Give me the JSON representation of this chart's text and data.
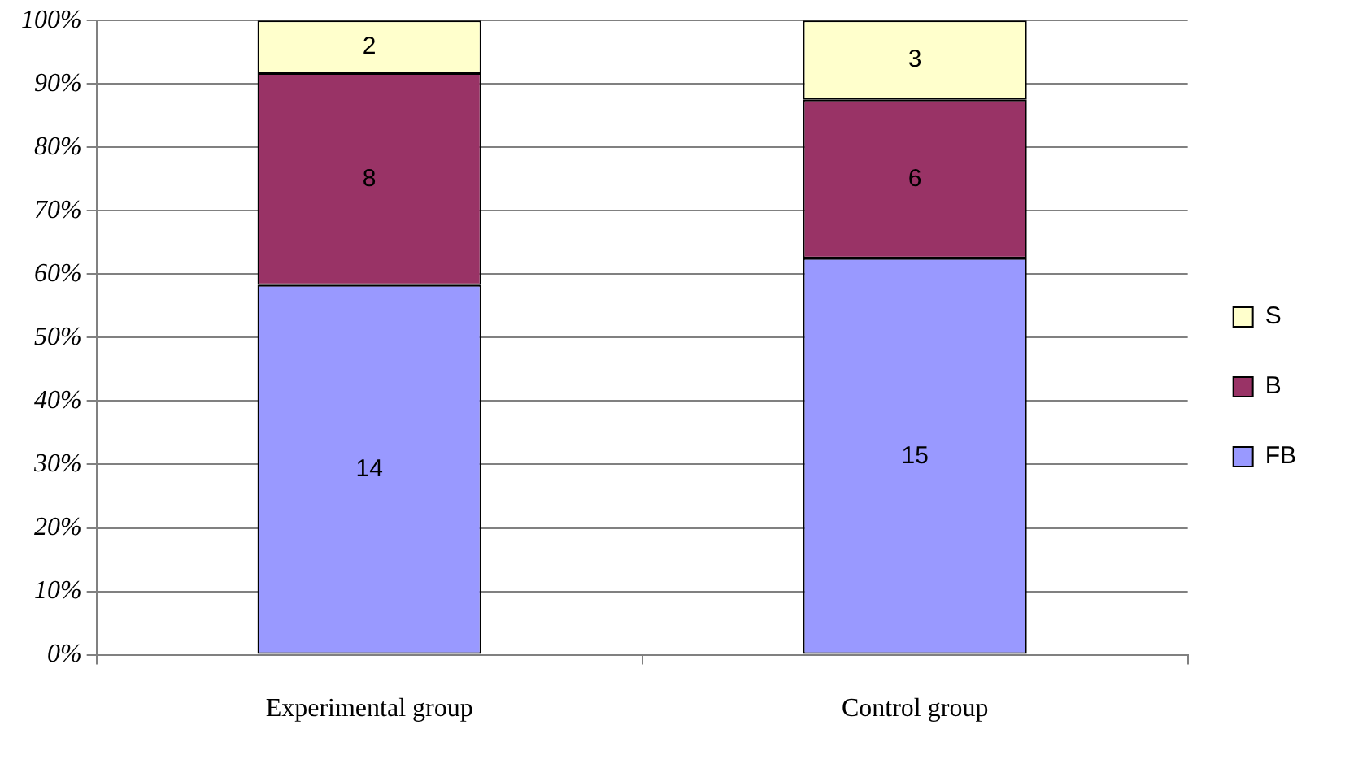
{
  "chart_data": {
    "type": "bar",
    "stacked": true,
    "categories": [
      "Experimental group",
      "Control group"
    ],
    "series": [
      {
        "name": "FB",
        "color": "#9999ff",
        "values": [
          58.3,
          62.5
        ]
      },
      {
        "name": "B",
        "color": "#993366",
        "values": [
          33.4,
          25
        ]
      },
      {
        "name": "S",
        "color": "#ffffcc",
        "values": [
          8.3,
          12.5
        ]
      }
    ],
    "annotations": [
      "14",
      "8",
      "2",
      "15",
      "6",
      "3"
    ],
    "ylim": [
      0,
      100
    ],
    "yticks": [
      {
        "value": 0,
        "label": "0%"
      },
      {
        "value": 10,
        "label": "10%"
      },
      {
        "value": 20,
        "label": "20%"
      },
      {
        "value": 30,
        "label": "30%"
      },
      {
        "value": 40,
        "label": "40%"
      },
      {
        "value": 50,
        "label": "50%"
      },
      {
        "value": 60,
        "label": "60%"
      },
      {
        "value": 70,
        "label": "70%"
      },
      {
        "value": 80,
        "label": "80%"
      },
      {
        "value": 90,
        "label": "90%"
      },
      {
        "value": 100,
        "label": "100%"
      }
    ],
    "grid": "y",
    "legend": "right"
  }
}
